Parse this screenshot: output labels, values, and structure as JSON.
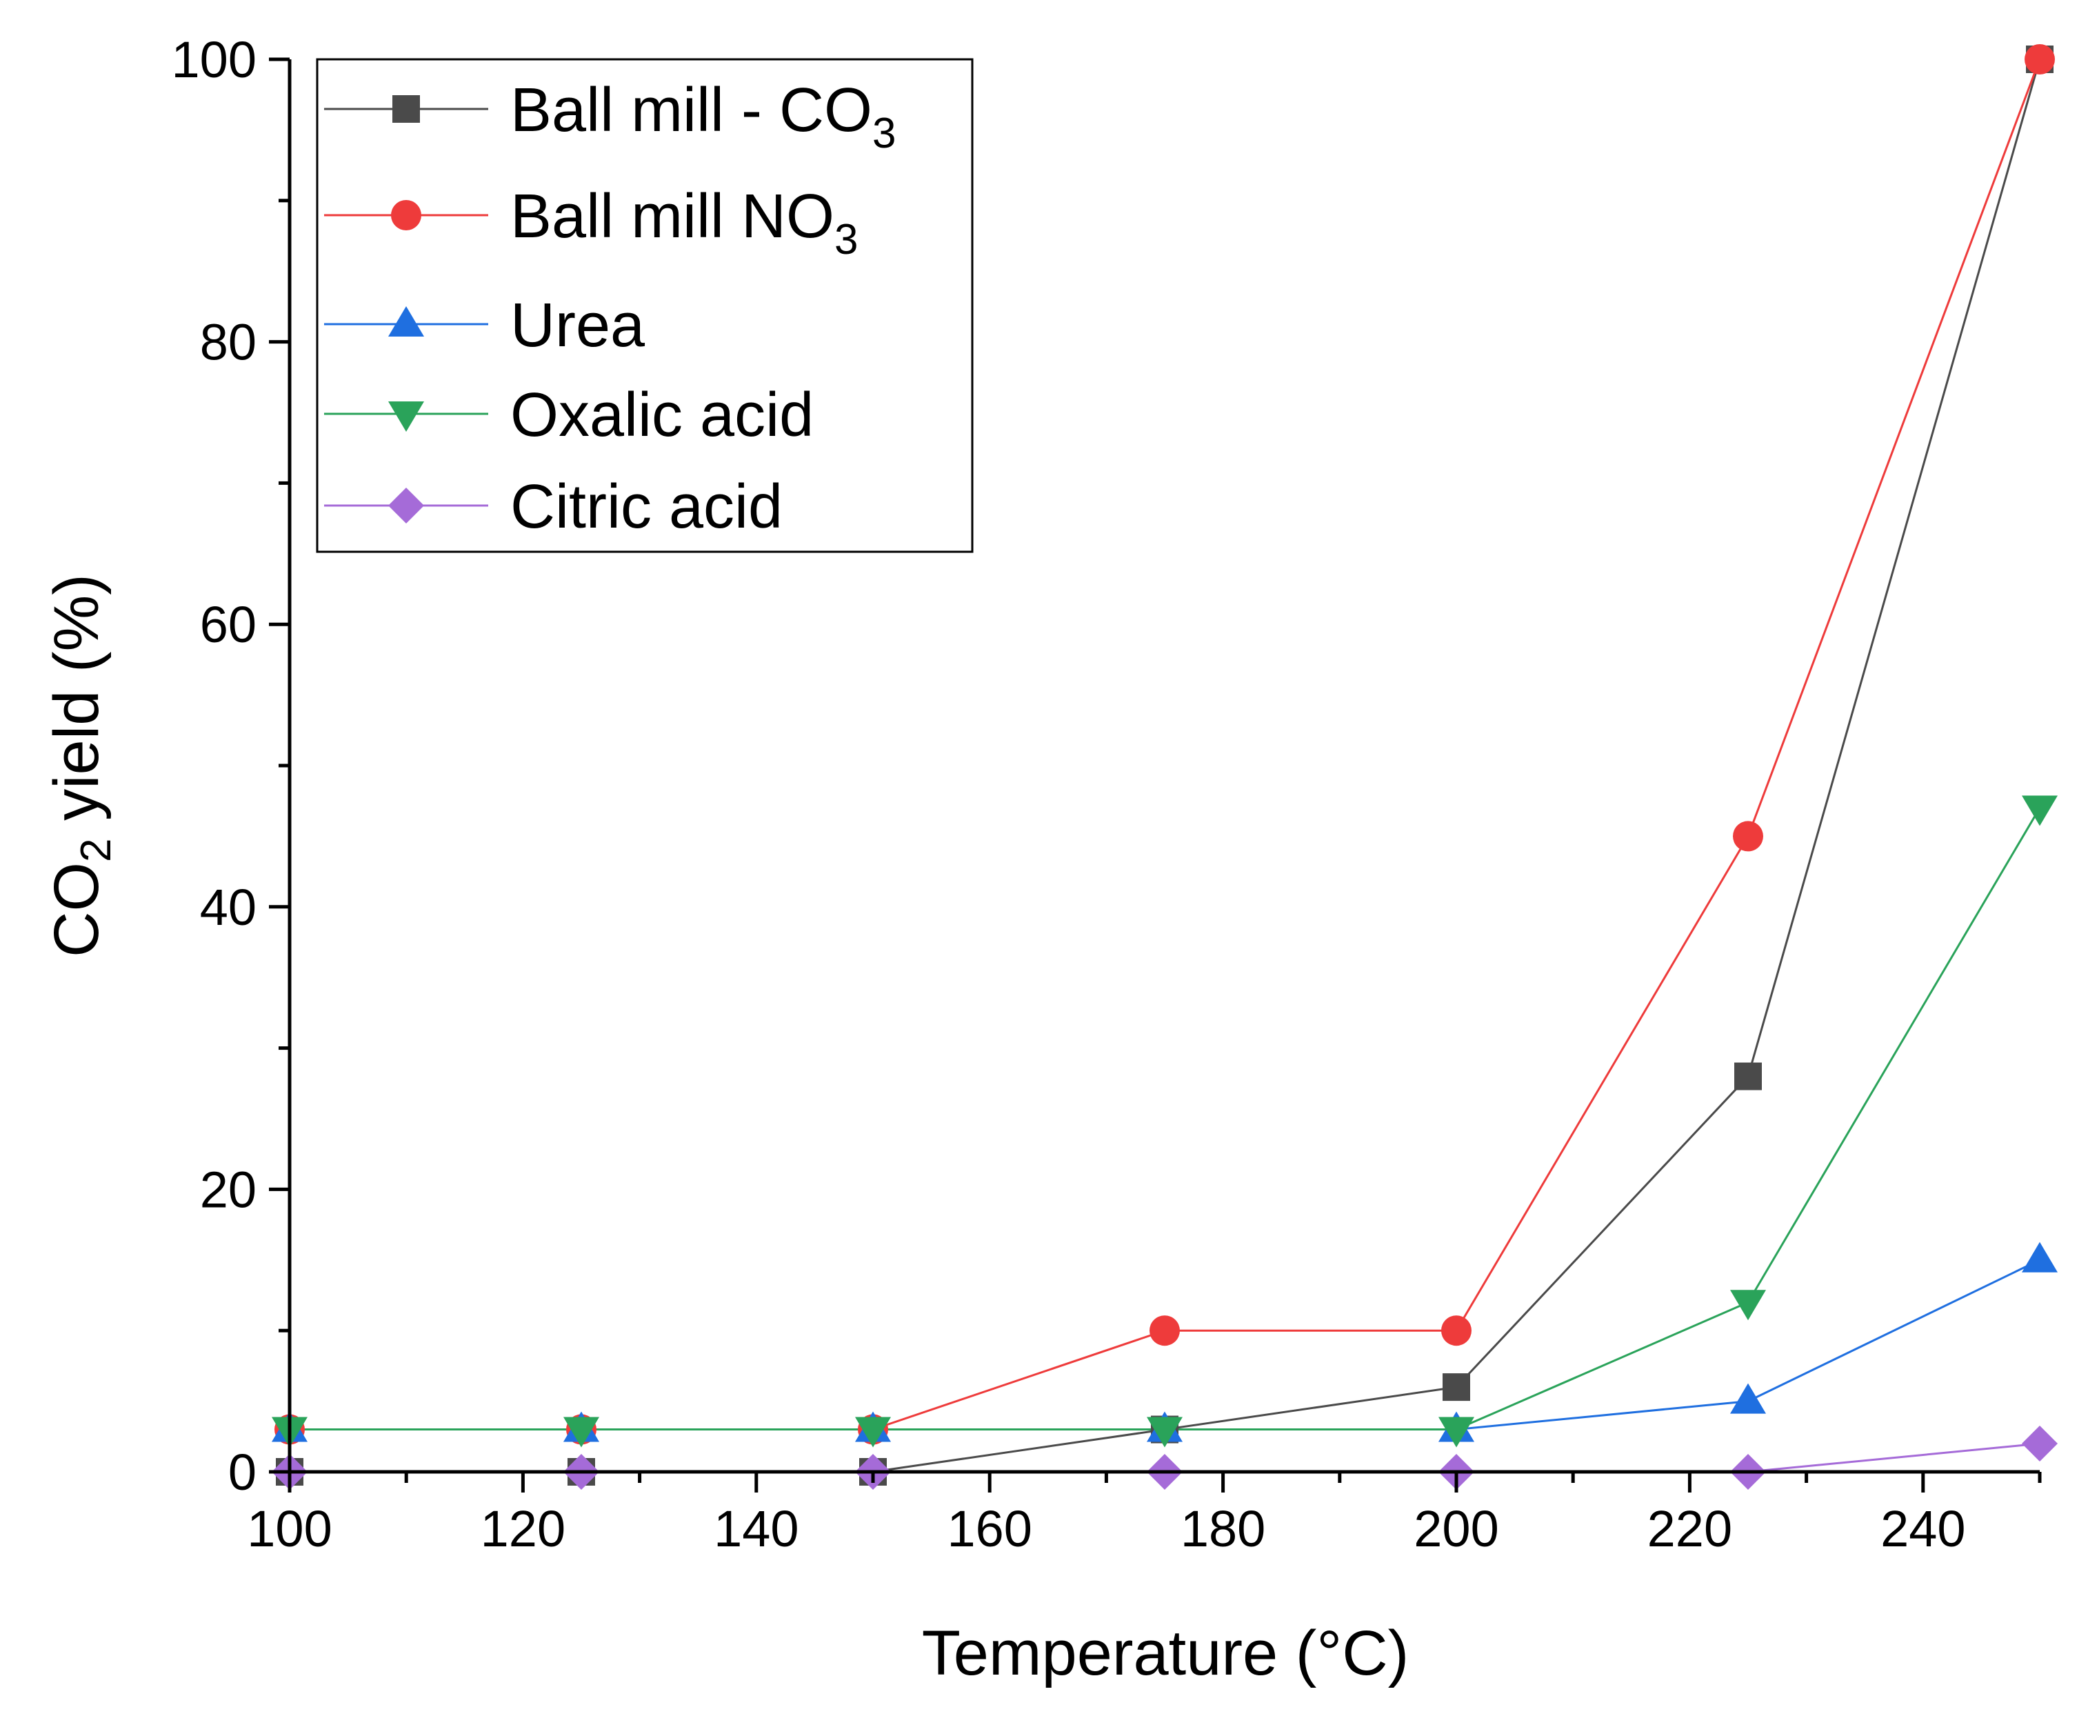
{
  "chart_data": {
    "type": "line",
    "title": "",
    "xlabel": "Temperature (°C)",
    "ylabel": {
      "base": "CO",
      "sub": "2",
      "rest": " yield (%)"
    },
    "xlim": [
      100,
      250
    ],
    "ylim": [
      0,
      100
    ],
    "x_ticks": [
      100,
      120,
      140,
      160,
      180,
      200,
      220,
      240
    ],
    "x_minor_ticks": [
      110,
      130,
      150,
      170,
      190,
      210,
      230,
      250
    ],
    "y_ticks": [
      0,
      20,
      40,
      60,
      80,
      100
    ],
    "y_minor_ticks": [
      10,
      30,
      50,
      70,
      90
    ],
    "grid": false,
    "legend_position": "top-left",
    "x": [
      100,
      125,
      150,
      175,
      200,
      225,
      250
    ],
    "series": [
      {
        "name": "Ball mill - CO",
        "name_sub": "3",
        "marker": "square",
        "color": "#4a4a4a",
        "values": [
          0,
          0,
          0,
          3,
          6,
          28,
          100
        ]
      },
      {
        "name": "Ball mill NO",
        "name_sub": "3",
        "marker": "circle",
        "color": "#ee3b3b",
        "values": [
          3,
          3,
          3,
          10,
          10,
          45,
          100
        ]
      },
      {
        "name": "Urea",
        "name_sub": "",
        "marker": "triangle-up",
        "color": "#1f6fe0",
        "values": [
          3,
          3,
          3,
          3,
          3,
          5,
          15
        ]
      },
      {
        "name": "Oxalic acid",
        "name_sub": "",
        "marker": "triangle-down",
        "color": "#2aa35a",
        "values": [
          3,
          3,
          3,
          3,
          3,
          12,
          47
        ]
      },
      {
        "name": "Citric acid",
        "name_sub": "",
        "marker": "diamond",
        "color": "#a56bd8",
        "values": [
          0,
          0,
          0,
          0,
          0,
          0,
          2
        ]
      }
    ]
  }
}
